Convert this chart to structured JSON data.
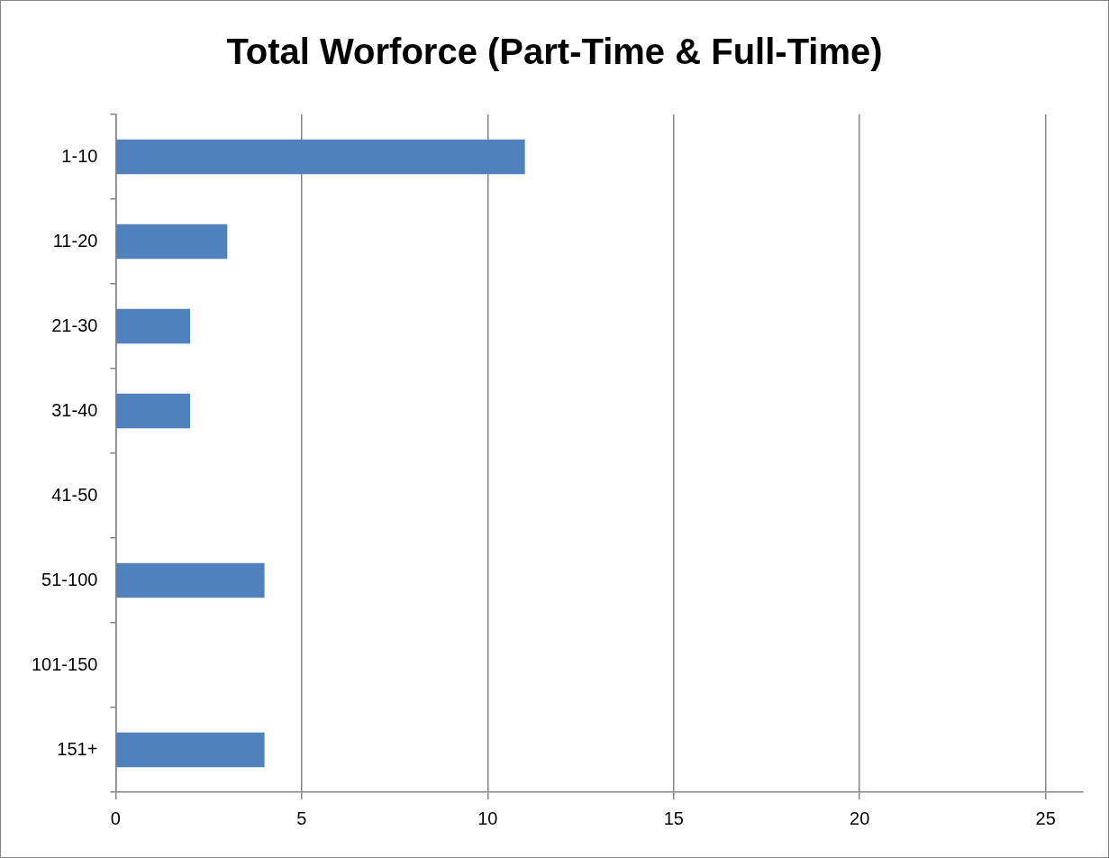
{
  "chart_data": {
    "type": "bar",
    "orientation": "horizontal",
    "title": "Total Worforce (Part-Time & Full-Time)",
    "categories": [
      "1-10",
      "11-20",
      "21-30",
      "31-40",
      "41-50",
      "51-100",
      "101-150",
      "151+"
    ],
    "values": [
      11,
      3,
      2,
      2,
      0,
      4,
      0,
      4
    ],
    "color": "#4f81bd",
    "xlim": [
      0,
      26
    ],
    "xticks": [
      0,
      5,
      10,
      15,
      20,
      25
    ],
    "grid": "x"
  }
}
